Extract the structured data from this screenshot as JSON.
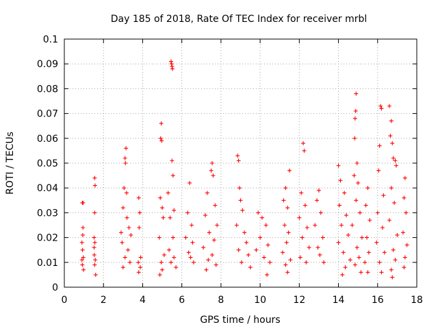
{
  "chart_data": {
    "type": "scatter",
    "title": "Day 185 of 2018, Rate Of TEC Index for receiver mrbl",
    "xlabel": "GPS time / hours",
    "ylabel": "ROTI / TECUs",
    "xlim": [
      0,
      18
    ],
    "ylim": [
      0,
      0.1
    ],
    "x_ticks": [
      "0",
      "2",
      "4",
      "6",
      "8",
      "10",
      "12",
      "14",
      "16",
      "18"
    ],
    "y_ticks": [
      "0",
      "0.01",
      "0.02",
      "0.03",
      "0.04",
      "0.05",
      "0.06",
      "0.07",
      "0.08",
      "0.09",
      "0.1"
    ],
    "grid": true,
    "marker": "+",
    "series_color": "#ff0000",
    "series": [
      {
        "name": "ROTI",
        "points": [
          [
            0.92,
            0.034
          ],
          [
            0.96,
            0.034
          ],
          [
            0.95,
            0.024
          ],
          [
            0.9,
            0.018
          ],
          [
            0.93,
            0.015
          ],
          [
            0.97,
            0.012
          ],
          [
            0.92,
            0.009
          ],
          [
            0.98,
            0.007
          ],
          [
            0.94,
            0.021
          ],
          [
            0.9,
            0.011
          ],
          [
            1.55,
            0.044
          ],
          [
            1.57,
            0.041
          ],
          [
            1.55,
            0.03
          ],
          [
            1.52,
            0.02
          ],
          [
            1.56,
            0.018
          ],
          [
            1.53,
            0.013
          ],
          [
            1.58,
            0.011
          ],
          [
            1.55,
            0.009
          ],
          [
            1.6,
            0.005
          ],
          [
            1.52,
            0.016
          ],
          [
            3.15,
            0.056
          ],
          [
            3.1,
            0.052
          ],
          [
            3.12,
            0.05
          ],
          [
            3.05,
            0.04
          ],
          [
            3.18,
            0.038
          ],
          [
            3.0,
            0.032
          ],
          [
            3.2,
            0.028
          ],
          [
            3.3,
            0.024
          ],
          [
            2.9,
            0.022
          ],
          [
            3.4,
            0.021
          ],
          [
            2.95,
            0.018
          ],
          [
            3.25,
            0.015
          ],
          [
            3.1,
            0.012
          ],
          [
            3.35,
            0.01
          ],
          [
            3.0,
            0.008
          ],
          [
            3.8,
            0.036
          ],
          [
            3.85,
            0.03
          ],
          [
            3.82,
            0.024
          ],
          [
            3.9,
            0.012
          ],
          [
            3.78,
            0.01
          ],
          [
            3.88,
            0.008
          ],
          [
            3.8,
            0.006
          ],
          [
            4.95,
            0.066
          ],
          [
            4.92,
            0.06
          ],
          [
            4.97,
            0.059
          ],
          [
            4.9,
            0.036
          ],
          [
            5.0,
            0.032
          ],
          [
            5.05,
            0.028
          ],
          [
            4.85,
            0.02
          ],
          [
            5.1,
            0.013
          ],
          [
            4.95,
            0.01
          ],
          [
            5.0,
            0.007
          ],
          [
            4.88,
            0.005
          ],
          [
            5.45,
            0.091
          ],
          [
            5.48,
            0.09
          ],
          [
            5.5,
            0.089
          ],
          [
            5.52,
            0.088
          ],
          [
            5.5,
            0.051
          ],
          [
            5.55,
            0.045
          ],
          [
            5.3,
            0.038
          ],
          [
            5.6,
            0.031
          ],
          [
            5.4,
            0.028
          ],
          [
            5.55,
            0.02
          ],
          [
            5.35,
            0.015
          ],
          [
            5.6,
            0.012
          ],
          [
            5.45,
            0.01
          ],
          [
            5.7,
            0.008
          ],
          [
            6.4,
            0.042
          ],
          [
            6.3,
            0.03
          ],
          [
            6.5,
            0.025
          ],
          [
            6.2,
            0.02
          ],
          [
            6.55,
            0.018
          ],
          [
            6.35,
            0.014
          ],
          [
            6.45,
            0.012
          ],
          [
            6.6,
            0.01
          ],
          [
            7.55,
            0.05
          ],
          [
            7.5,
            0.047
          ],
          [
            7.6,
            0.045
          ],
          [
            7.3,
            0.038
          ],
          [
            7.7,
            0.033
          ],
          [
            7.2,
            0.029
          ],
          [
            7.8,
            0.025
          ],
          [
            7.4,
            0.022
          ],
          [
            7.65,
            0.019
          ],
          [
            7.1,
            0.016
          ],
          [
            7.55,
            0.013
          ],
          [
            7.35,
            0.011
          ],
          [
            7.75,
            0.009
          ],
          [
            7.25,
            0.007
          ],
          [
            8.85,
            0.053
          ],
          [
            8.9,
            0.051
          ],
          [
            8.95,
            0.04
          ],
          [
            9.0,
            0.035
          ],
          [
            9.1,
            0.031
          ],
          [
            8.8,
            0.025
          ],
          [
            9.2,
            0.022
          ],
          [
            9.3,
            0.018
          ],
          [
            8.9,
            0.015
          ],
          [
            9.4,
            0.013
          ],
          [
            9.05,
            0.01
          ],
          [
            9.5,
            0.008
          ],
          [
            9.9,
            0.03
          ],
          [
            10.1,
            0.028
          ],
          [
            10.3,
            0.025
          ],
          [
            10.0,
            0.02
          ],
          [
            10.4,
            0.017
          ],
          [
            9.8,
            0.015
          ],
          [
            10.2,
            0.012
          ],
          [
            10.5,
            0.01
          ],
          [
            10.35,
            0.005
          ],
          [
            11.3,
            0.04
          ],
          [
            11.2,
            0.035
          ],
          [
            11.4,
            0.032
          ],
          [
            11.5,
            0.047
          ],
          [
            11.25,
            0.025
          ],
          [
            11.45,
            0.022
          ],
          [
            11.35,
            0.018
          ],
          [
            11.15,
            0.014
          ],
          [
            11.55,
            0.011
          ],
          [
            11.3,
            0.009
          ],
          [
            11.4,
            0.006
          ],
          [
            12.2,
            0.058
          ],
          [
            12.25,
            0.055
          ],
          [
            12.1,
            0.038
          ],
          [
            12.3,
            0.033
          ],
          [
            12.0,
            0.028
          ],
          [
            12.4,
            0.024
          ],
          [
            12.15,
            0.02
          ],
          [
            12.5,
            0.016
          ],
          [
            12.05,
            0.012
          ],
          [
            12.35,
            0.01
          ],
          [
            13.0,
            0.039
          ],
          [
            12.9,
            0.035
          ],
          [
            13.1,
            0.03
          ],
          [
            12.8,
            0.025
          ],
          [
            13.2,
            0.02
          ],
          [
            12.95,
            0.016
          ],
          [
            13.05,
            0.013
          ],
          [
            13.25,
            0.01
          ],
          [
            14.0,
            0.049
          ],
          [
            14.1,
            0.043
          ],
          [
            14.3,
            0.038
          ],
          [
            14.05,
            0.033
          ],
          [
            14.4,
            0.029
          ],
          [
            14.15,
            0.025
          ],
          [
            14.5,
            0.021
          ],
          [
            14.0,
            0.018
          ],
          [
            14.25,
            0.014
          ],
          [
            14.6,
            0.011
          ],
          [
            14.35,
            0.008
          ],
          [
            14.2,
            0.005
          ],
          [
            14.9,
            0.078
          ],
          [
            14.88,
            0.071
          ],
          [
            14.85,
            0.068
          ],
          [
            14.83,
            0.06
          ],
          [
            14.95,
            0.05
          ],
          [
            14.8,
            0.045
          ],
          [
            15.0,
            0.042
          ],
          [
            14.9,
            0.035
          ],
          [
            15.1,
            0.03
          ],
          [
            14.7,
            0.025
          ],
          [
            15.2,
            0.02
          ],
          [
            14.95,
            0.016
          ],
          [
            15.05,
            0.012
          ],
          [
            14.85,
            0.009
          ],
          [
            15.15,
            0.006
          ],
          [
            15.5,
            0.04
          ],
          [
            15.4,
            0.033
          ],
          [
            15.6,
            0.027
          ],
          [
            15.45,
            0.02
          ],
          [
            15.55,
            0.014
          ],
          [
            15.35,
            0.01
          ],
          [
            15.5,
            0.006
          ],
          [
            16.1,
            0.057
          ],
          [
            16.15,
            0.073
          ],
          [
            16.2,
            0.072
          ],
          [
            16.05,
            0.047
          ],
          [
            16.3,
            0.037
          ],
          [
            16.0,
            0.03
          ],
          [
            16.25,
            0.024
          ],
          [
            15.95,
            0.018
          ],
          [
            16.35,
            0.014
          ],
          [
            16.1,
            0.01
          ],
          [
            16.2,
            0.006
          ],
          [
            16.6,
            0.073
          ],
          [
            16.7,
            0.067
          ],
          [
            16.65,
            0.061
          ],
          [
            16.75,
            0.058
          ],
          [
            16.8,
            0.052
          ],
          [
            16.9,
            0.051
          ],
          [
            16.95,
            0.049
          ],
          [
            16.7,
            0.04
          ],
          [
            16.85,
            0.034
          ],
          [
            16.6,
            0.027
          ],
          [
            17.0,
            0.021
          ],
          [
            16.8,
            0.015
          ],
          [
            16.9,
            0.011
          ],
          [
            16.7,
            0.007
          ],
          [
            16.75,
            0.004
          ],
          [
            17.4,
            0.044
          ],
          [
            17.35,
            0.036
          ],
          [
            17.45,
            0.03
          ],
          [
            17.3,
            0.022
          ],
          [
            17.5,
            0.017
          ],
          [
            17.4,
            0.012
          ],
          [
            17.35,
            0.008
          ]
        ]
      }
    ]
  }
}
